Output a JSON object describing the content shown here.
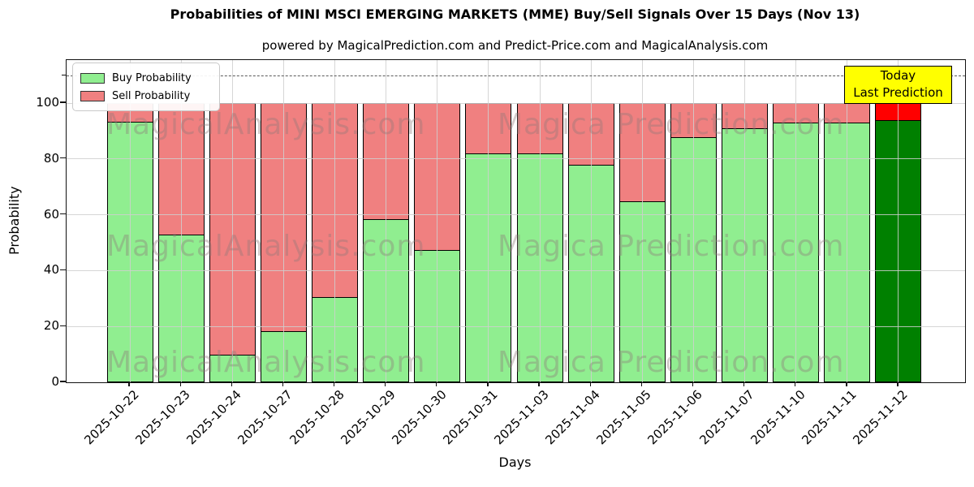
{
  "header": {
    "title": "Probabilities of MINI MSCI EMERGING MARKETS (MME) Buy/Sell Signals Over 15 Days (Nov 13)",
    "subtitle": "powered by MagicalPrediction.com and Predict-Price.com and MagicalAnalysis.com"
  },
  "axes": {
    "ylabel": "Probability",
    "xlabel": "Days",
    "yticks": [
      0,
      20,
      40,
      60,
      80,
      100
    ]
  },
  "legend": {
    "items": [
      {
        "label": "Buy Probability",
        "color": "#90ee90"
      },
      {
        "label": "Sell Probability",
        "color": "#f08080"
      }
    ]
  },
  "annotation": {
    "line1": "Today",
    "line2": "Last Prediction",
    "bg_color": "#ffff00"
  },
  "watermarks": {
    "left_text": "MagicalAnalysis.com",
    "right_text": "Magica Prediction.com"
  },
  "chart_data": {
    "type": "bar",
    "stacked": true,
    "title": "Probabilities of MINI MSCI EMERGING MARKETS (MME) Buy/Sell Signals Over 15 Days (Nov 13)",
    "xlabel": "Days",
    "ylabel": "Probability",
    "categories": [
      "2025-10-22",
      "2025-10-23",
      "2025-10-24",
      "2025-10-27",
      "2025-10-28",
      "2025-10-29",
      "2025-10-30",
      "2025-10-31",
      "2025-11-03",
      "2025-11-04",
      "2025-11-05",
      "2025-11-06",
      "2025-11-07",
      "2025-11-10",
      "2025-11-11",
      "2025-11-12"
    ],
    "series": [
      {
        "name": "Buy Probability",
        "color": "#90ee90",
        "values": [
          93.5,
          53,
          10,
          18.5,
          30.5,
          58.5,
          47.5,
          82,
          82,
          78,
          65,
          88,
          91,
          93,
          93,
          94
        ]
      },
      {
        "name": "Sell Probability",
        "color": "#f08080",
        "values": [
          6.5,
          47,
          90,
          81.5,
          69.5,
          41.5,
          52.5,
          18,
          18,
          22,
          35,
          12,
          9,
          7,
          7,
          6
        ]
      }
    ],
    "last_bar_colors": {
      "buy": "#008000",
      "sell": "#ff0000"
    },
    "ylim": [
      0,
      115
    ],
    "dashed_line_y": 110,
    "grid": true,
    "legend_position": "upper left"
  }
}
